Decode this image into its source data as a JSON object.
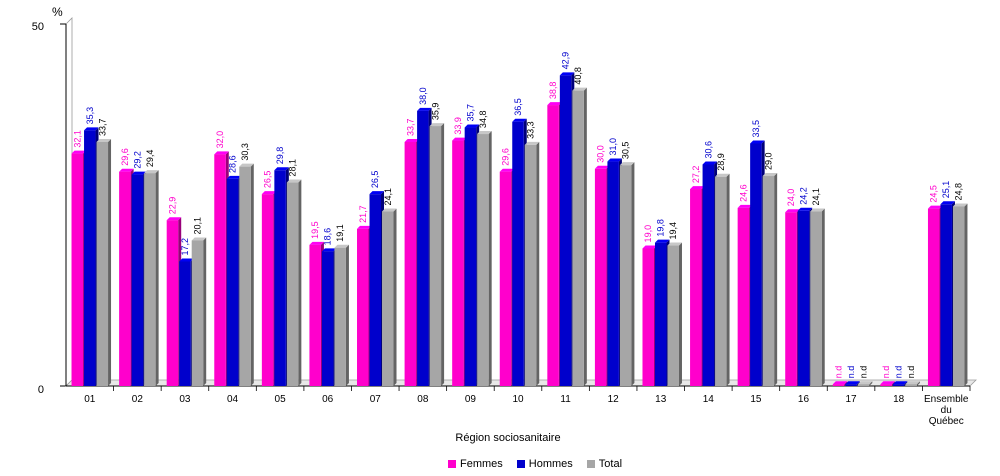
{
  "chart_data": {
    "type": "bar",
    "unit_label": "%",
    "xlabel": "Région sociosanitaire",
    "ylabel": "",
    "ylim": [
      0,
      50
    ],
    "yticks": [
      "0",
      "50"
    ],
    "categories": [
      "01",
      "02",
      "03",
      "04",
      "05",
      "06",
      "07",
      "08",
      "09",
      "10",
      "11",
      "12",
      "13",
      "14",
      "15",
      "16",
      "17",
      "18",
      "Ensemble du Québec"
    ],
    "series": [
      {
        "name": "Femmes",
        "color": "#FF00CC",
        "values": [
          32.1,
          29.6,
          22.9,
          32.0,
          26.5,
          19.5,
          21.7,
          33.7,
          33.9,
          29.6,
          38.8,
          30.0,
          19.0,
          27.2,
          24.6,
          24.0,
          null,
          null,
          24.5
        ],
        "labels": [
          "32,1",
          "29,6",
          "22,9",
          "32,0",
          "26,5",
          "19,5",
          "21,7",
          "33,7",
          "33,9",
          "29,6",
          "38,8",
          "30,0",
          "19,0",
          "27,2",
          "24,6",
          "24,0",
          "n.d",
          "n.d",
          "24,5"
        ]
      },
      {
        "name": "Hommes",
        "color": "#0000CC",
        "values": [
          35.3,
          29.2,
          17.2,
          28.6,
          29.8,
          18.6,
          26.5,
          38.0,
          35.7,
          36.5,
          42.9,
          31.0,
          19.8,
          30.6,
          33.5,
          24.2,
          null,
          null,
          25.1
        ],
        "labels": [
          "35,3",
          "29,2",
          "17,2",
          "28,6",
          "29,8",
          "18,6",
          "26,5",
          "38,0",
          "35,7",
          "36,5",
          "42,9",
          "31,0",
          "19,8",
          "30,6",
          "33,5",
          "24,2",
          "n.d",
          "n.d",
          "25,1"
        ]
      },
      {
        "name": "Total",
        "color": "#A6A6A6",
        "values": [
          33.7,
          29.4,
          20.1,
          30.3,
          28.1,
          19.1,
          24.1,
          35.9,
          34.8,
          33.3,
          40.8,
          30.5,
          19.4,
          28.9,
          29.0,
          24.1,
          null,
          null,
          24.8
        ],
        "labels": [
          "33,7",
          "29,4",
          "20,1",
          "30,3",
          "28,1",
          "19,1",
          "24,1",
          "35,9",
          "34,8",
          "33,3",
          "40,8",
          "30,5",
          "19,4",
          "28,9",
          "29,0",
          "24,1",
          "n.d",
          "n.d",
          "24,8"
        ]
      }
    ],
    "legend_position": "bottom-center",
    "grid": false
  }
}
